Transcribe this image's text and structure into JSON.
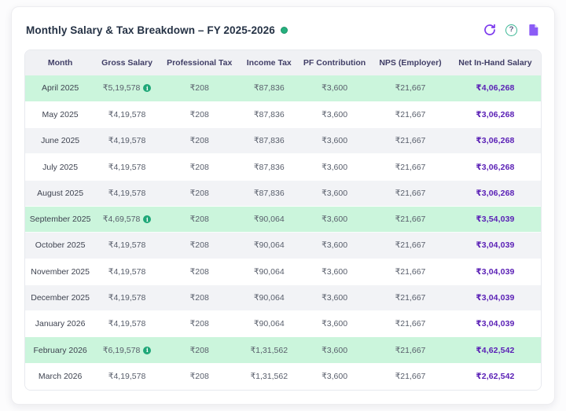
{
  "header": {
    "title": "Monthly Salary & Tax Breakdown – FY 2025-2026",
    "status_dot_color": "#25b07e",
    "icons": {
      "refresh": "refresh-icon",
      "help": "help-icon",
      "help_glyph": "?",
      "document": "document-icon"
    }
  },
  "colors": {
    "accent_purple": "#5b21b6",
    "highlight_green": "#cbf5dc",
    "stripe_gray": "#f2f3f6",
    "header_bg": "#f0f1f4",
    "info_icon_green": "#1fa878"
  },
  "table": {
    "columns": [
      "Month",
      "Gross Salary",
      "Professional Tax",
      "Income Tax",
      "PF Contribution",
      "NPS (Employer)",
      "Net In-Hand Salary"
    ],
    "info_glyph": "i",
    "rows": [
      {
        "month": "April 2025",
        "gross": "₹5,19,578",
        "gross_info": true,
        "professional_tax": "₹208",
        "income_tax": "₹87,836",
        "pf": "₹3,600",
        "nps": "₹21,667",
        "net": "₹4,06,268",
        "bg": "green"
      },
      {
        "month": "May 2025",
        "gross": "₹4,19,578",
        "gross_info": false,
        "professional_tax": "₹208",
        "income_tax": "₹87,836",
        "pf": "₹3,600",
        "nps": "₹21,667",
        "net": "₹3,06,268",
        "bg": "white"
      },
      {
        "month": "June 2025",
        "gross": "₹4,19,578",
        "gross_info": false,
        "professional_tax": "₹208",
        "income_tax": "₹87,836",
        "pf": "₹3,600",
        "nps": "₹21,667",
        "net": "₹3,06,268",
        "bg": "gray"
      },
      {
        "month": "July 2025",
        "gross": "₹4,19,578",
        "gross_info": false,
        "professional_tax": "₹208",
        "income_tax": "₹87,836",
        "pf": "₹3,600",
        "nps": "₹21,667",
        "net": "₹3,06,268",
        "bg": "white"
      },
      {
        "month": "August 2025",
        "gross": "₹4,19,578",
        "gross_info": false,
        "professional_tax": "₹208",
        "income_tax": "₹87,836",
        "pf": "₹3,600",
        "nps": "₹21,667",
        "net": "₹3,06,268",
        "bg": "gray"
      },
      {
        "month": "September 2025",
        "gross": "₹4,69,578",
        "gross_info": true,
        "professional_tax": "₹208",
        "income_tax": "₹90,064",
        "pf": "₹3,600",
        "nps": "₹21,667",
        "net": "₹3,54,039",
        "bg": "green"
      },
      {
        "month": "October 2025",
        "gross": "₹4,19,578",
        "gross_info": false,
        "professional_tax": "₹208",
        "income_tax": "₹90,064",
        "pf": "₹3,600",
        "nps": "₹21,667",
        "net": "₹3,04,039",
        "bg": "gray"
      },
      {
        "month": "November 2025",
        "gross": "₹4,19,578",
        "gross_info": false,
        "professional_tax": "₹208",
        "income_tax": "₹90,064",
        "pf": "₹3,600",
        "nps": "₹21,667",
        "net": "₹3,04,039",
        "bg": "white"
      },
      {
        "month": "December 2025",
        "gross": "₹4,19,578",
        "gross_info": false,
        "professional_tax": "₹208",
        "income_tax": "₹90,064",
        "pf": "₹3,600",
        "nps": "₹21,667",
        "net": "₹3,04,039",
        "bg": "gray"
      },
      {
        "month": "January 2026",
        "gross": "₹4,19,578",
        "gross_info": false,
        "professional_tax": "₹208",
        "income_tax": "₹90,064",
        "pf": "₹3,600",
        "nps": "₹21,667",
        "net": "₹3,04,039",
        "bg": "white"
      },
      {
        "month": "February 2026",
        "gross": "₹6,19,578",
        "gross_info": true,
        "professional_tax": "₹208",
        "income_tax": "₹1,31,562",
        "pf": "₹3,600",
        "nps": "₹21,667",
        "net": "₹4,62,542",
        "bg": "green"
      },
      {
        "month": "March 2026",
        "gross": "₹4,19,578",
        "gross_info": false,
        "professional_tax": "₹208",
        "income_tax": "₹1,31,562",
        "pf": "₹3,600",
        "nps": "₹21,667",
        "net": "₹2,62,542",
        "bg": "white"
      }
    ]
  }
}
